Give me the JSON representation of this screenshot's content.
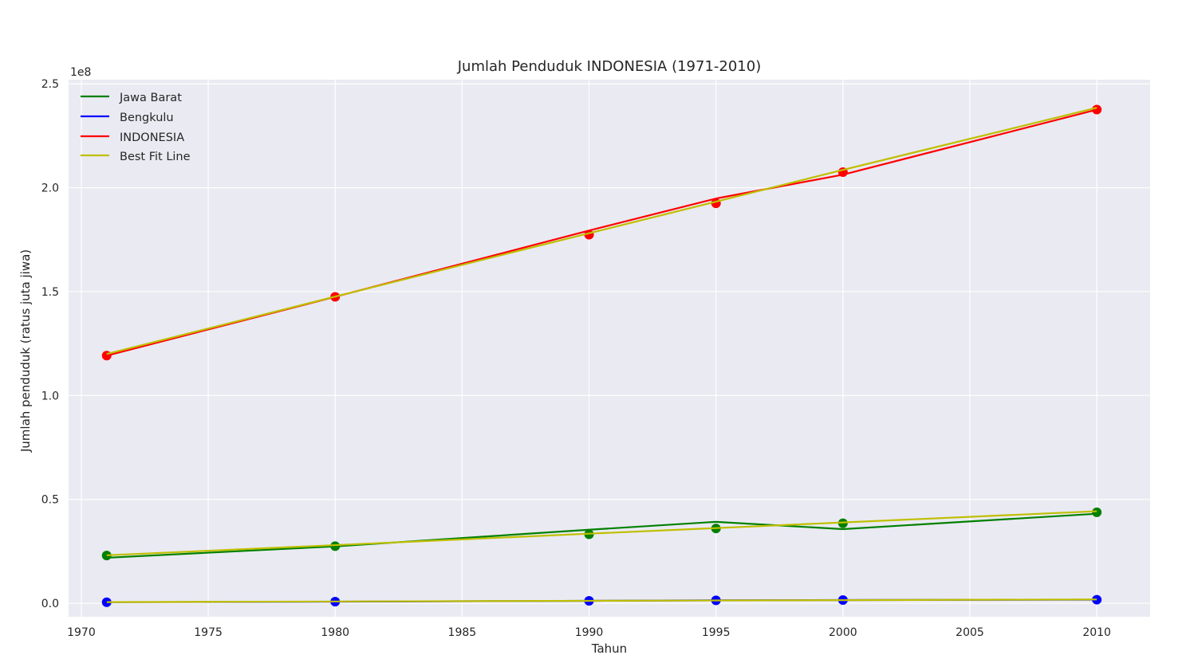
{
  "chart_data": {
    "type": "line",
    "title": "Jumlah Penduduk INDONESIA (1971-2010)",
    "xlabel": "Tahun",
    "ylabel": "Jumlah penduduk (ratus juta jiwa)",
    "y_offset_text": "1e8",
    "xlim": [
      1969.5,
      2012.1
    ],
    "ylim": [
      -6500000,
      252000000
    ],
    "xticks": [
      1970,
      1975,
      1980,
      1985,
      1990,
      1995,
      2000,
      2005,
      2010
    ],
    "xtick_labels": [
      "1970",
      "1975",
      "1980",
      "1985",
      "1990",
      "1995",
      "2000",
      "2005",
      "2010"
    ],
    "yticks": [
      0,
      50000000,
      100000000,
      150000000,
      200000000,
      250000000
    ],
    "ytick_labels": [
      "0.0",
      "0.5",
      "1.0",
      "1.5",
      "2.0",
      "2.5"
    ],
    "grid": true,
    "legend_position": "top-left",
    "background": "#EAEAF2",
    "x": [
      1971,
      1980,
      1990,
      1995,
      2000,
      2010
    ],
    "series": [
      {
        "name": "Jawa Barat",
        "color": "#008000",
        "line": [
          21900000,
          27400000,
          35400000,
          39200000,
          35700000,
          43100000
        ],
        "points": [
          23000000,
          27500000,
          33200000,
          36000000,
          38500000,
          43800000
        ],
        "fit": [
          23100000,
          28000000,
          33500000,
          36200000,
          38900000,
          44300000
        ]
      },
      {
        "name": "Bengkulu",
        "color": "#0000FF",
        "line": [
          520000,
          770000,
          1180000,
          1410000,
          1560000,
          1720000
        ],
        "points": [
          520000,
          770000,
          1180000,
          1410000,
          1560000,
          1720000
        ],
        "fit": [
          560000,
          860000,
          1180000,
          1350000,
          1510000,
          1840000
        ]
      },
      {
        "name": "INDONESIA",
        "color": "#FF0000",
        "line": [
          119200000,
          147500000,
          179400000,
          194800000,
          206300000,
          237600000
        ],
        "points": [
          119200000,
          147500000,
          177400000,
          192500000,
          207500000,
          237600000
        ],
        "fit": [
          120000000,
          147600000,
          178100000,
          193300000,
          208600000,
          238500000
        ]
      },
      {
        "name": "Best Fit Line",
        "color": "#BFBF00"
      }
    ]
  }
}
